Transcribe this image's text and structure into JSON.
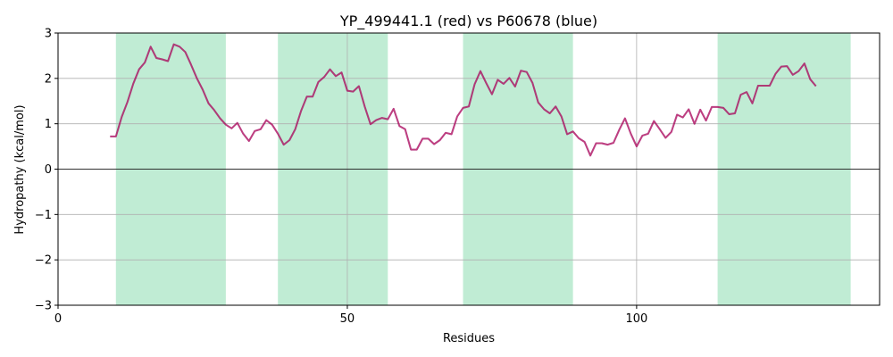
{
  "chart_data": {
    "type": "line",
    "title": "YP_499441.1 (red) vs P60678 (blue)",
    "xlabel": "Residues",
    "ylabel": "Hydropathy (kcal/mol)",
    "xlim": [
      0,
      142
    ],
    "ylim": [
      -3,
      3
    ],
    "xticks": [
      0,
      50,
      100
    ],
    "yticks": [
      -3,
      -2,
      -1,
      0,
      1,
      2,
      3
    ],
    "grid": true,
    "zero_line": true,
    "highlight_regions": [
      [
        10,
        29
      ],
      [
        38,
        57
      ],
      [
        70,
        89
      ],
      [
        114,
        137
      ]
    ],
    "series": [
      {
        "color": "#0000ff",
        "x": [
          9,
          10,
          11,
          12,
          13,
          14,
          15,
          16,
          17,
          18,
          19,
          20,
          21,
          22,
          23,
          24,
          25,
          26,
          27,
          28,
          29,
          30,
          31,
          32,
          33,
          34,
          35,
          36,
          37,
          38,
          39,
          40,
          41,
          42,
          43,
          44,
          45,
          46,
          47,
          48,
          49,
          50,
          51,
          52,
          53,
          54,
          55,
          56,
          57,
          58,
          59,
          60,
          61,
          62,
          63,
          64,
          65,
          66,
          67,
          68,
          69,
          70,
          71,
          72,
          73,
          74,
          75,
          76,
          77,
          78,
          79,
          80,
          81,
          82,
          83,
          84,
          85,
          86,
          87,
          88,
          89,
          90,
          91,
          92,
          93,
          94,
          95,
          96,
          97,
          98,
          99,
          100,
          101,
          102,
          103,
          104,
          105,
          106,
          107,
          108,
          109,
          110,
          111,
          112,
          113,
          114,
          115,
          116,
          117,
          118,
          119,
          120,
          121,
          122,
          123,
          124,
          125,
          126,
          127,
          128,
          129,
          130,
          131
        ],
        "y": [
          0.72,
          0.72,
          1.15,
          1.48,
          1.88,
          2.2,
          2.35,
          2.7,
          2.45,
          2.42,
          2.38,
          2.75,
          2.7,
          2.58,
          2.3,
          2.0,
          1.75,
          1.45,
          1.3,
          1.12,
          0.98,
          0.9,
          1.02,
          0.78,
          0.62,
          0.84,
          0.88,
          1.08,
          0.98,
          0.78,
          0.54,
          0.64,
          0.88,
          1.28,
          1.6,
          1.6,
          1.92,
          2.03,
          2.2,
          2.05,
          2.13,
          1.73,
          1.71,
          1.83,
          1.38,
          0.99,
          1.08,
          1.13,
          1.1,
          1.33,
          0.95,
          0.88,
          0.43,
          0.43,
          0.67,
          0.67,
          0.55,
          0.64,
          0.8,
          0.77,
          1.16,
          1.35,
          1.38,
          1.87,
          2.16,
          1.9,
          1.65,
          1.97,
          1.88,
          2.01,
          1.82,
          2.17,
          2.14,
          1.9,
          1.47,
          1.32,
          1.23,
          1.38,
          1.16,
          0.77,
          0.83,
          0.68,
          0.6,
          0.3,
          0.57,
          0.57,
          0.54,
          0.58,
          0.87,
          1.12,
          0.78,
          0.5,
          0.74,
          0.78,
          1.06,
          0.88,
          0.69,
          0.82,
          1.2,
          1.14,
          1.32,
          1.0,
          1.31,
          1.07,
          1.37,
          1.37,
          1.35,
          1.21,
          1.23,
          1.64,
          1.7,
          1.45,
          1.84,
          1.84,
          1.84,
          2.1,
          2.26,
          2.27,
          2.08,
          2.16,
          2.33,
          1.98,
          1.83
        ]
      },
      {
        "color": "#ff0000",
        "x": [
          9,
          10,
          11,
          12,
          13,
          14,
          15,
          16,
          17,
          18,
          19,
          20,
          21,
          22,
          23,
          24,
          25,
          26,
          27,
          28,
          29,
          30,
          31,
          32,
          33,
          34,
          35,
          36,
          37,
          38,
          39,
          40,
          41,
          42,
          43,
          44,
          45,
          46,
          47,
          48,
          49,
          50,
          51,
          52,
          53,
          54,
          55,
          56,
          57,
          58,
          59,
          60,
          61,
          62,
          63,
          64,
          65,
          66,
          67,
          68,
          69,
          70,
          71,
          72,
          73,
          74,
          75,
          76,
          77,
          78,
          79,
          80,
          81,
          82,
          83,
          84,
          85,
          86,
          87,
          88,
          89,
          90,
          91,
          92,
          93,
          94,
          95,
          96,
          97,
          98,
          99,
          100,
          101,
          102,
          103,
          104,
          105,
          106,
          107,
          108,
          109,
          110,
          111,
          112,
          113,
          114,
          115,
          116,
          117,
          118,
          119,
          120,
          121,
          122,
          123,
          124,
          125,
          126,
          127,
          128,
          129,
          130,
          131
        ],
        "y": [
          0.72,
          0.72,
          1.15,
          1.48,
          1.88,
          2.2,
          2.35,
          2.7,
          2.45,
          2.42,
          2.38,
          2.75,
          2.7,
          2.58,
          2.3,
          2.0,
          1.75,
          1.45,
          1.3,
          1.12,
          0.98,
          0.9,
          1.02,
          0.78,
          0.62,
          0.84,
          0.88,
          1.08,
          0.98,
          0.78,
          0.54,
          0.64,
          0.88,
          1.28,
          1.6,
          1.6,
          1.92,
          2.03,
          2.2,
          2.05,
          2.13,
          1.73,
          1.71,
          1.83,
          1.38,
          0.99,
          1.08,
          1.13,
          1.1,
          1.33,
          0.95,
          0.88,
          0.43,
          0.43,
          0.67,
          0.67,
          0.55,
          0.64,
          0.8,
          0.77,
          1.16,
          1.35,
          1.38,
          1.87,
          2.16,
          1.9,
          1.65,
          1.97,
          1.88,
          2.01,
          1.82,
          2.17,
          2.14,
          1.9,
          1.47,
          1.32,
          1.23,
          1.38,
          1.16,
          0.77,
          0.83,
          0.68,
          0.6,
          0.3,
          0.57,
          0.57,
          0.54,
          0.58,
          0.87,
          1.12,
          0.78,
          0.5,
          0.74,
          0.78,
          1.06,
          0.88,
          0.69,
          0.82,
          1.2,
          1.14,
          1.32,
          1.0,
          1.31,
          1.07,
          1.37,
          1.37,
          1.35,
          1.21,
          1.23,
          1.64,
          1.7,
          1.45,
          1.84,
          1.84,
          1.84,
          2.1,
          2.26,
          2.27,
          2.08,
          2.16,
          2.33,
          1.98,
          1.83
        ]
      }
    ],
    "colors": {
      "region": "#c0ecd4",
      "grid": "#b0b0b0",
      "zero_line": "#000000"
    }
  }
}
